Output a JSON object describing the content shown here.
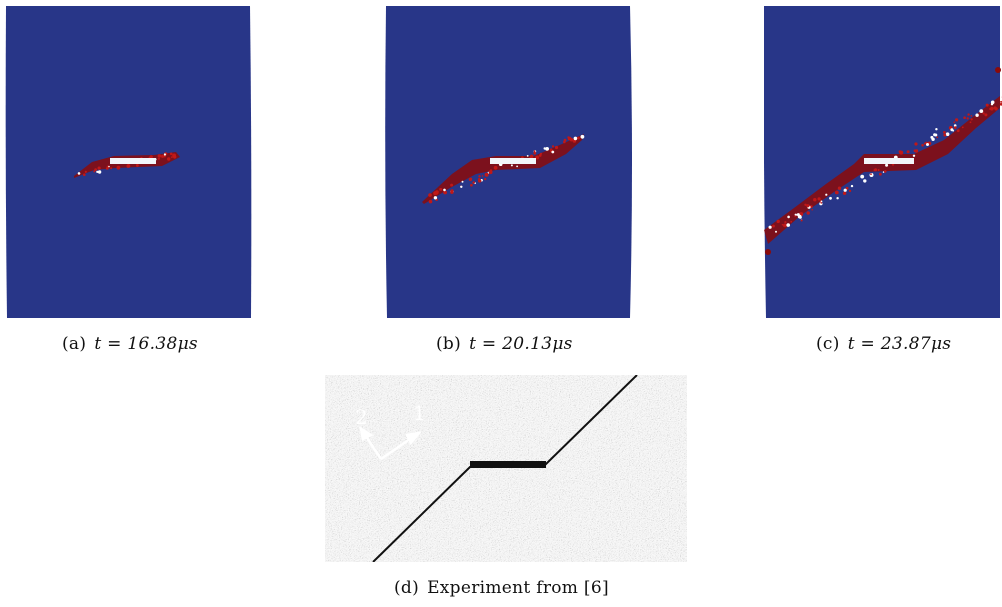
{
  "figure": {
    "panels": [
      {
        "id": "a",
        "label": "(a)",
        "caption": "t = 16.38μs"
      },
      {
        "id": "b",
        "label": "(b)",
        "caption": "t = 20.13μs"
      },
      {
        "id": "c",
        "label": "(c)",
        "caption": "t = 23.87μs"
      },
      {
        "id": "d",
        "label": "(d)",
        "caption": "Experiment from [6]"
      }
    ],
    "experiment": {
      "axis_1": "1",
      "axis_2": "2"
    }
  },
  "colors": {
    "specimen": "#283688",
    "damage": "#8b0a0a",
    "notch": "#f2f6fa",
    "granite_light": "#d6d6d6",
    "granite_dark": "#555555"
  }
}
